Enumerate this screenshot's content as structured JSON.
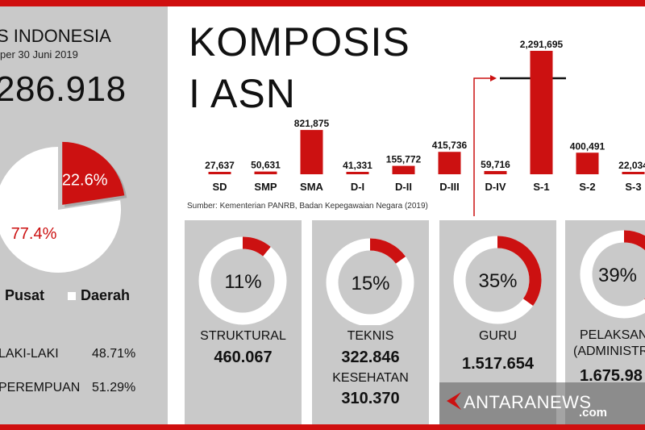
{
  "left_panel": {
    "title": "S INDONESIA",
    "subtitle": "per 30 Juni 2019",
    "total": "286.918",
    "pie": {
      "slices": [
        {
          "label": "22.6%",
          "value": 22.6,
          "color": "#cc1111"
        },
        {
          "label": "77.4%",
          "value": 77.4,
          "color": "#ffffff"
        }
      ]
    },
    "legend": [
      {
        "label": "Pusat",
        "color": "#cc1111"
      },
      {
        "label": "Daerah",
        "color": "#ffffff"
      }
    ],
    "gender": [
      {
        "label": "LAKI-LAKI",
        "value": "48.71%"
      },
      {
        "label": "PEREMPUAN",
        "value": "51.29%"
      }
    ]
  },
  "main_title_line1": "KOMPOSIS",
  "main_title_line2": "I ASN",
  "source": "Sumber: Kementerian PANRB, Badan Kepegawaian Negara (2019)",
  "chart_data": [
    {
      "type": "bar",
      "categories": [
        "SD",
        "SMP",
        "SMA",
        "D-I",
        "D-II",
        "D-III",
        "D-IV",
        "S-1",
        "S-2",
        "S-3"
      ],
      "values": [
        27637,
        50631,
        821875,
        41331,
        155772,
        415736,
        59716,
        2291695,
        400491,
        22034
      ],
      "value_labels": [
        "27,637",
        "50,631",
        "821,875",
        "41,331",
        "155,772",
        "415,736",
        "59,716",
        "2,291,695",
        "400,491",
        "22,034"
      ],
      "ylim": [
        0,
        2291695
      ],
      "color": "#cc1111"
    },
    {
      "type": "pie",
      "categories": [
        "Pusat",
        "Daerah"
      ],
      "values": [
        22.6,
        77.4
      ]
    }
  ],
  "cards": [
    {
      "pct": "11%",
      "value": 11,
      "label1": "STRUKTURAL",
      "amount1": "460.067"
    },
    {
      "pct": "15%",
      "value": 15,
      "label1": "TEKNIS",
      "amount1": "322.846",
      "label2": "KESEHATAN",
      "amount2": "310.370"
    },
    {
      "pct": "35%",
      "value": 35,
      "label1": "GURU",
      "amount1": "1.517.654"
    },
    {
      "pct": "39%",
      "value": 39,
      "label1": "PELAKSAN",
      "label1b": "(ADMINISTR",
      "amount1": "1.675.98"
    }
  ],
  "watermark": {
    "text": "ANTARANEWS",
    "com": ".com"
  }
}
